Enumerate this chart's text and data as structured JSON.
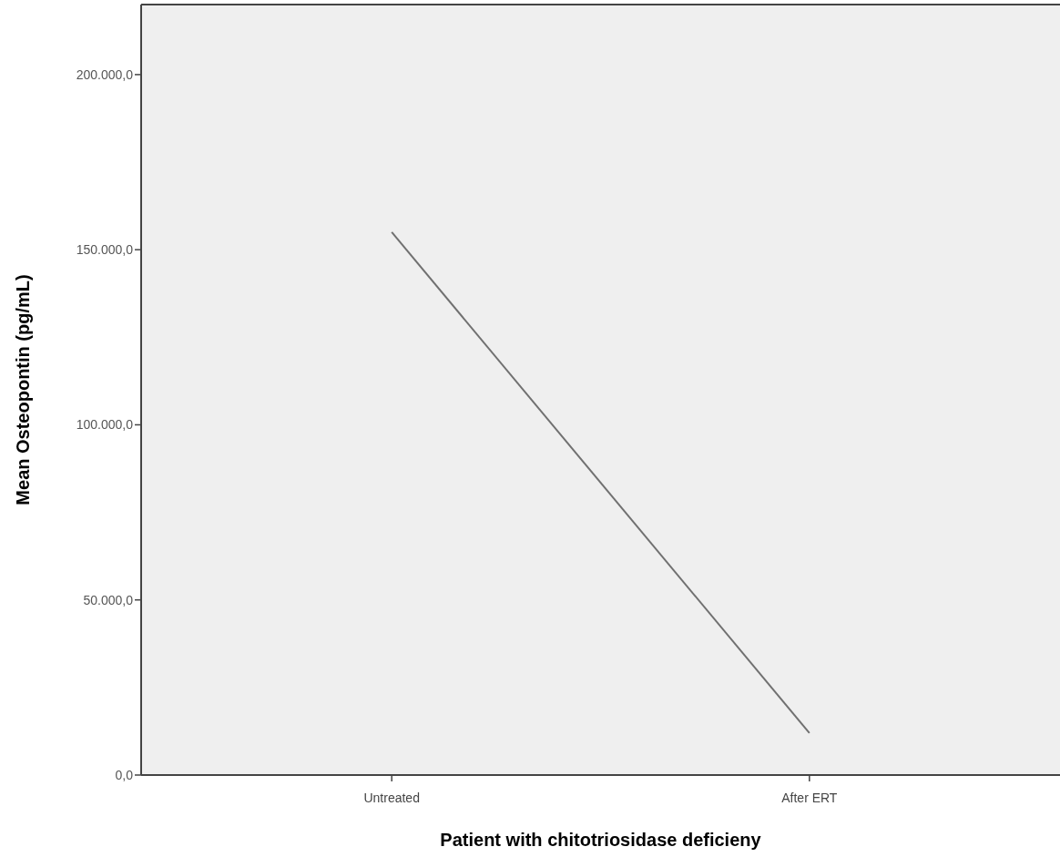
{
  "chart_data": {
    "type": "line",
    "xlabel": "Patient with chitotriosidase deficieny",
    "ylabel": "Mean Osteopontin (pg/mL)",
    "categories": [
      "Untreated",
      "After ERT"
    ],
    "series": [
      {
        "color": "#707070",
        "values": [
          155000,
          12000
        ]
      }
    ],
    "ylim": [
      0,
      220000
    ],
    "yticks": [
      {
        "value": 0,
        "label": "0,0"
      },
      {
        "value": 50000,
        "label": "50.000,0"
      },
      {
        "value": 100000,
        "label": "100.000,0"
      },
      {
        "value": 150000,
        "label": "150.000,0"
      },
      {
        "value": 200000,
        "label": "200.000,0"
      }
    ],
    "marker": "none",
    "line_style": "solid",
    "grid": false
  }
}
